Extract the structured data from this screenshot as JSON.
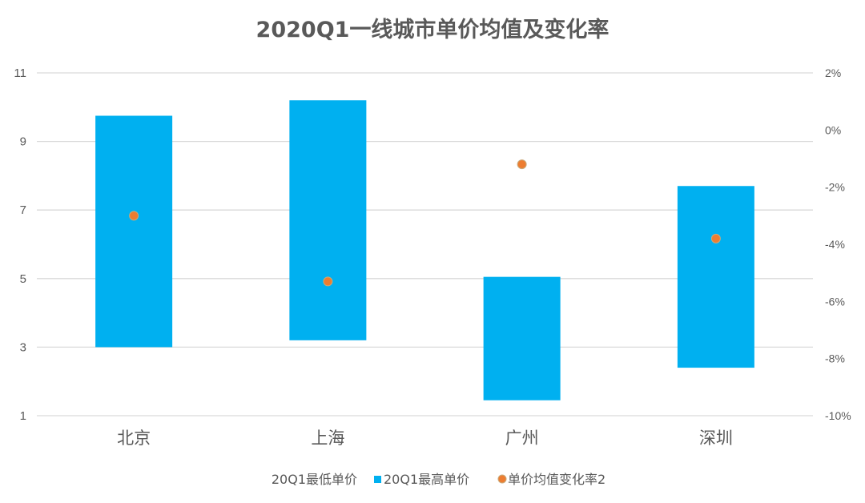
{
  "chart_data": {
    "type": "bar",
    "title": "2020Q1一线城市单价均值及变化率",
    "categories": [
      "北京",
      "上海",
      "广州",
      "深圳"
    ],
    "series": [
      {
        "name": "20Q1最低单价",
        "values": [
          3.0,
          3.2,
          1.45,
          2.4
        ],
        "color": "transparent",
        "axis": "left"
      },
      {
        "name": "20Q1最高单价",
        "values": [
          9.75,
          10.2,
          5.05,
          7.7
        ],
        "color": "#00B0F0",
        "axis": "left"
      },
      {
        "name": "单价均值变化率2",
        "values": [
          -3.0,
          -5.3,
          -1.2,
          -3.8
        ],
        "color": "#ED7D31",
        "axis": "right",
        "unit": "%"
      }
    ],
    "y_left": {
      "min": 1,
      "max": 11,
      "ticks": [
        "1",
        "3",
        "5",
        "7",
        "9",
        "11"
      ]
    },
    "y_right": {
      "min": -10,
      "max": 2,
      "ticks": [
        "-10%",
        "-8%",
        "-6%",
        "-4%",
        "-2%",
        "0%",
        "2%"
      ]
    },
    "grid": true,
    "legend_position": "bottom"
  }
}
